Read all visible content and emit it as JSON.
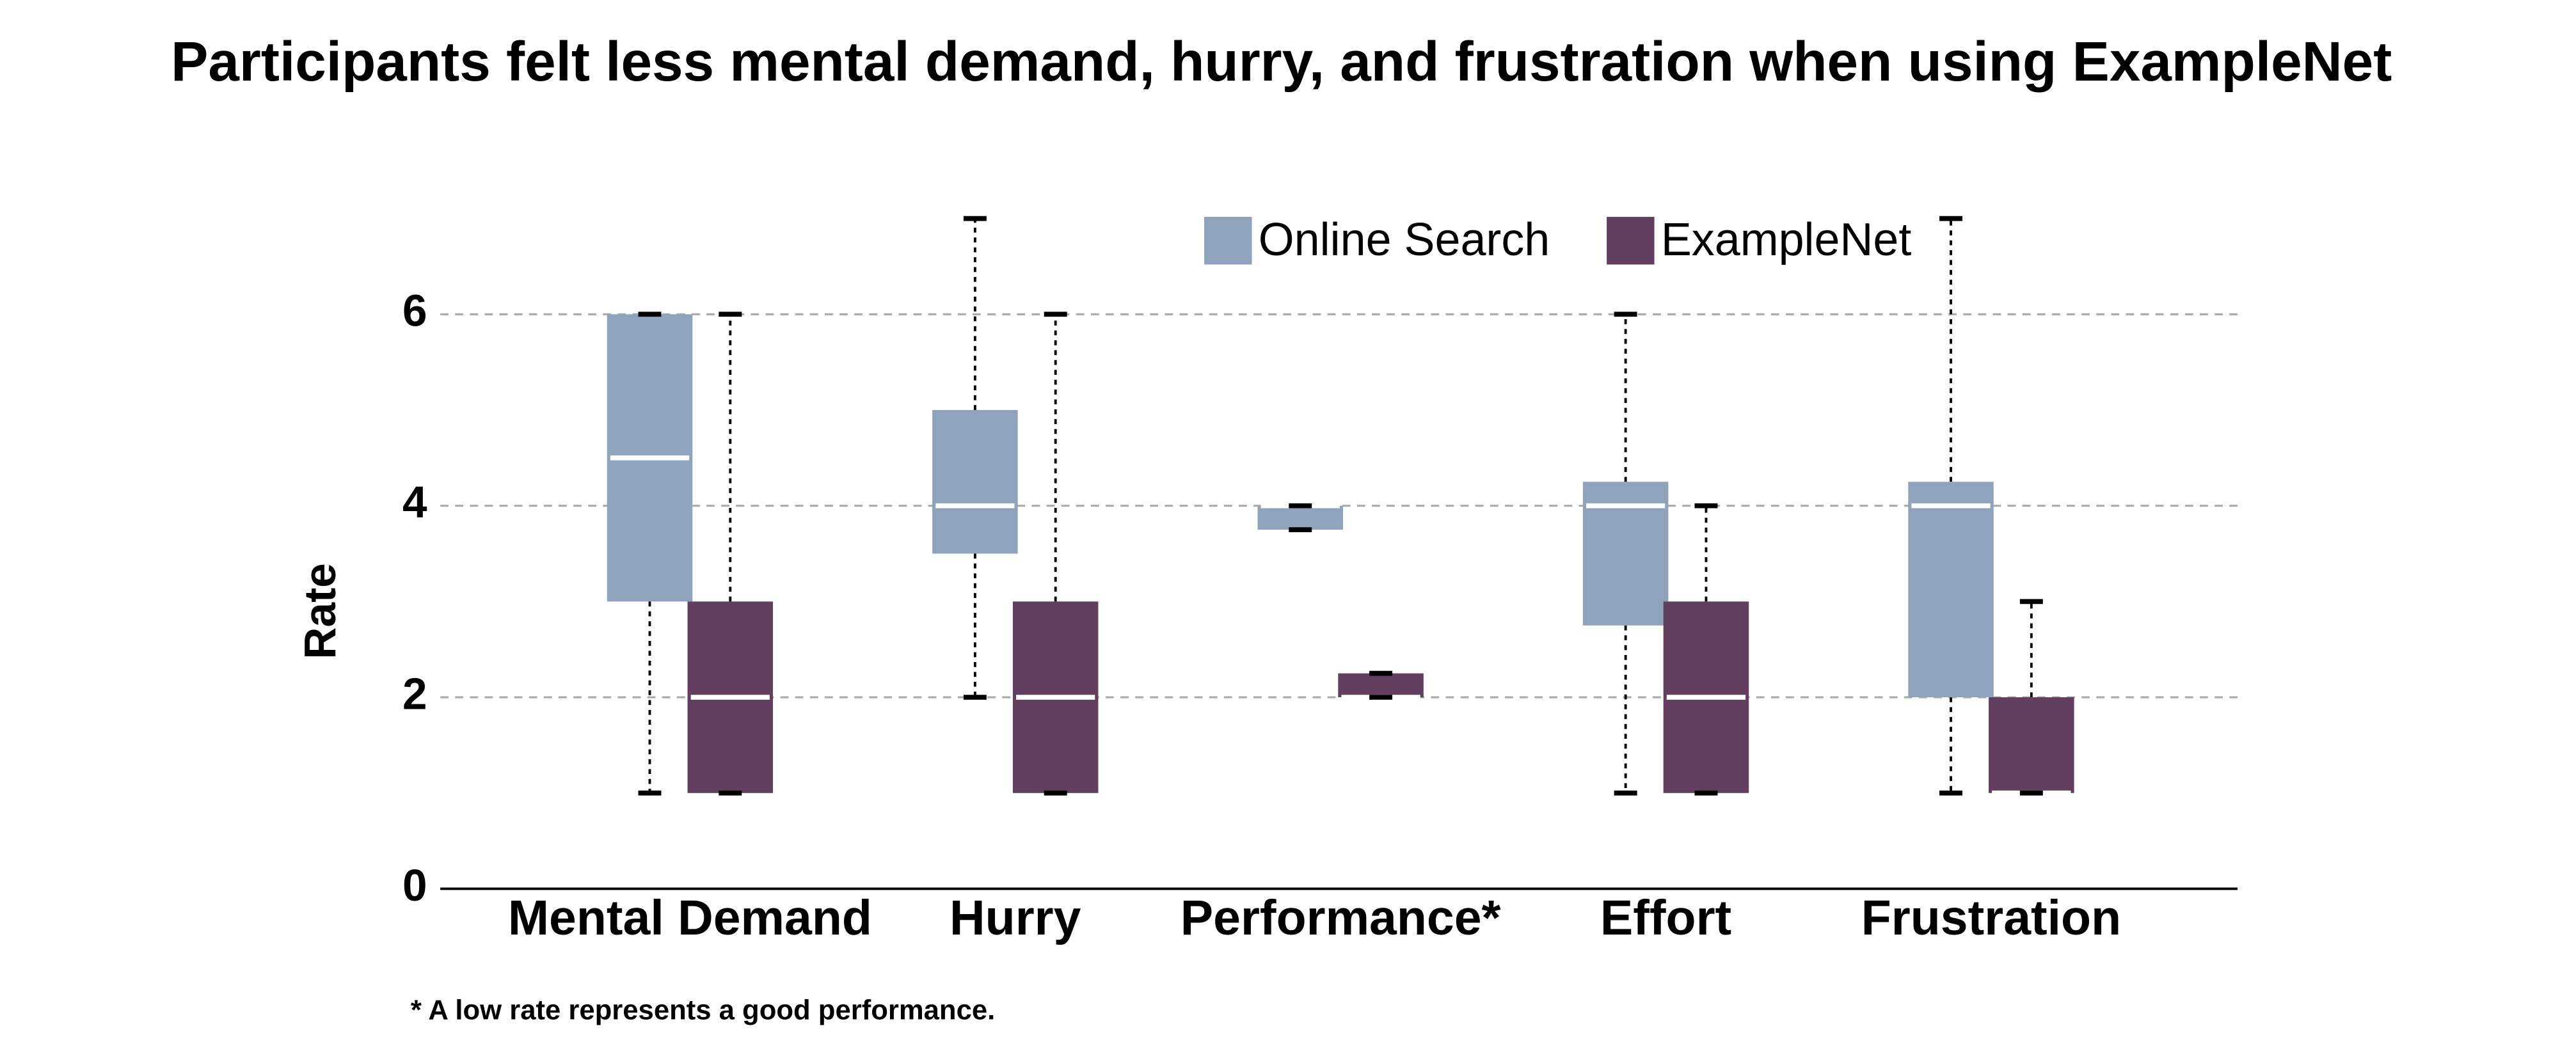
{
  "chart_data": {
    "type": "box",
    "title": "Participants felt less mental demand, hurry, and frustration when using ExampleNet",
    "y_label": "Rate",
    "footnote": "* A low rate represents a good performance.",
    "categories": [
      "Mental Demand",
      "Hurry",
      "Performance*",
      "Effort",
      "Frustration"
    ],
    "ylim": [
      0,
      7
    ],
    "yticks": [
      0,
      2,
      4,
      6
    ],
    "grid": true,
    "legend": "top",
    "series": [
      {
        "name": "Online Search",
        "color": "#8fa3bd",
        "min": [
          1,
          2,
          3.75,
          1,
          1
        ],
        "q1": [
          3,
          3.5,
          3.75,
          2.75,
          2
        ],
        "median": [
          4.5,
          4,
          4,
          4,
          4
        ],
        "q3": [
          6,
          5,
          4,
          4.25,
          4.25
        ],
        "max": [
          6,
          7,
          4,
          6,
          7
        ]
      },
      {
        "name": "ExampleNet",
        "color": "#623f5e",
        "min": [
          1,
          1,
          2,
          1,
          1
        ],
        "q1": [
          1,
          1,
          2,
          1,
          1
        ],
        "median": [
          2,
          2,
          2,
          2,
          1
        ],
        "q3": [
          3,
          3,
          2.25,
          3,
          2
        ],
        "max": [
          6,
          6,
          2.25,
          4,
          3
        ]
      }
    ]
  }
}
